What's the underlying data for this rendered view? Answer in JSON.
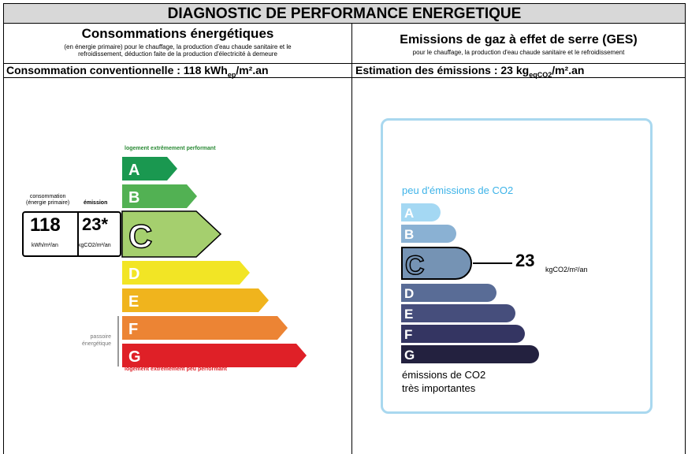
{
  "title": "DIAGNOSTIC DE PERFORMANCE ENERGETIQUE",
  "left": {
    "heading": "Consommations énergétiques",
    "subheading_line1": "(en énergie primaire) pour le chauffage, la production d'eau chaude sanitaire et le",
    "subheading_line2": "refroidissement, déduction faite de la production d'électricité à demeure",
    "row_label_prefix": "Consommation conventionnelle : 118 kWh",
    "row_label_sub": "ep",
    "row_label_suffix": "/m².an",
    "top_caption": "logement extrêmement performant",
    "bottom_caption": "logement extrêmement peu performant",
    "consumption_label_line1": "consommation",
    "consumption_label_line2": "(énergie primaire)",
    "emission_label": "émission",
    "consumption_value": "118",
    "emission_value": "23*",
    "consumption_unit": "kWh/m²/an",
    "emission_unit": "kgCO2/m²/an",
    "passoire_line1": "passoire",
    "passoire_line2": "énergétique",
    "current_class": "C",
    "classes": [
      {
        "letter": "A",
        "color": "#1a9850"
      },
      {
        "letter": "B",
        "color": "#52b153"
      },
      {
        "letter": "C",
        "color": "#a5cf6e"
      },
      {
        "letter": "D",
        "color": "#f2e525"
      },
      {
        "letter": "E",
        "color": "#f0b41d"
      },
      {
        "letter": "F",
        "color": "#ec8434"
      },
      {
        "letter": "G",
        "color": "#df2027"
      }
    ]
  },
  "right": {
    "heading": "Emissions de gaz à effet de serre (GES)",
    "subheading": "pour le chauffage, la production d'eau chaude sanitaire et le refroidissement",
    "row_label_prefix": "Estimation des émissions : 23 kg",
    "row_label_sub": "eqCO2",
    "row_label_suffix": "/m².an",
    "top_caption": "peu d'émissions de CO2",
    "bottom_caption_line1": "émissions de CO2",
    "bottom_caption_line2": "très importantes",
    "value": "23",
    "unit": "kgCO2/m²/an",
    "current_class": "C",
    "classes": [
      {
        "letter": "A",
        "color": "#a4d8f3"
      },
      {
        "letter": "B",
        "color": "#8ab1d3"
      },
      {
        "letter": "C",
        "color": "#7593b4"
      },
      {
        "letter": "D",
        "color": "#596c96"
      },
      {
        "letter": "E",
        "color": "#464e7c"
      },
      {
        "letter": "F",
        "color": "#343562"
      },
      {
        "letter": "G",
        "color": "#23213f"
      }
    ],
    "box_border_color": "#a9d8ef",
    "caption_color": "#3db3e8"
  }
}
